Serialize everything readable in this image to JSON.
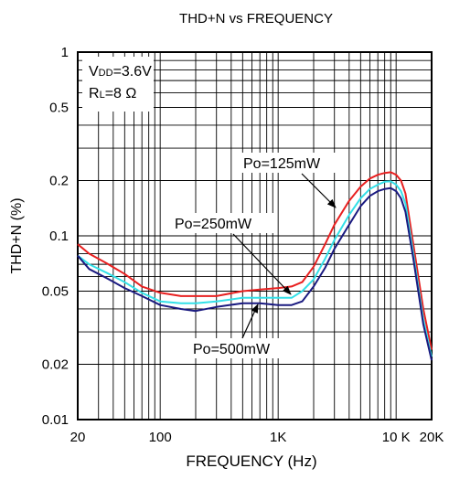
{
  "chart_data": {
    "type": "line",
    "title": "THD+N vs FREQUENCY",
    "xlabel": "FREQUENCY (Hz)",
    "ylabel": "THD+N (%)",
    "x_scale": "log",
    "y_scale": "log",
    "xlim": [
      20,
      20000
    ],
    "ylim": [
      0.01,
      1
    ],
    "x_ticks": [
      {
        "value": 20,
        "label": "20"
      },
      {
        "value": 100,
        "label": "100"
      },
      {
        "value": 1000,
        "label": "1K"
      },
      {
        "value": 10000,
        "label": "10 K"
      },
      {
        "value": 20000,
        "label": "20K"
      }
    ],
    "y_ticks": [
      {
        "value": 1,
        "label": "1"
      },
      {
        "value": 0.5,
        "label": "0.5"
      },
      {
        "value": 0.2,
        "label": "0.2"
      },
      {
        "value": 0.1,
        "label": "0.1"
      },
      {
        "value": 0.05,
        "label": "0.05"
      },
      {
        "value": 0.02,
        "label": "0.02"
      },
      {
        "value": 0.01,
        "label": "0.01"
      }
    ],
    "grid": true,
    "conditions": {
      "vdd_prefix": "V",
      "vdd_sub": "DD",
      "vdd_value": "=3.6V",
      "rl_prefix": "R",
      "rl_sub": "L",
      "rl_value": "=8 Ω"
    },
    "series": [
      {
        "name": "Po=125mW",
        "color": "#e82020",
        "x": [
          20,
          25,
          35,
          50,
          70,
          100,
          150,
          200,
          300,
          500,
          700,
          1000,
          1300,
          1600,
          2000,
          2500,
          3000,
          4000,
          5000,
          6000,
          7000,
          8000,
          9000,
          10000,
          11000,
          12000,
          14000,
          17000,
          20000
        ],
        "y": [
          0.09,
          0.08,
          0.071,
          0.062,
          0.053,
          0.049,
          0.047,
          0.047,
          0.047,
          0.05,
          0.051,
          0.052,
          0.053,
          0.056,
          0.068,
          0.09,
          0.115,
          0.155,
          0.185,
          0.205,
          0.215,
          0.22,
          0.222,
          0.215,
          0.2,
          0.17,
          0.09,
          0.04,
          0.024
        ]
      },
      {
        "name": "Po=250mW",
        "color": "#33e0e8",
        "x": [
          20,
          25,
          35,
          50,
          70,
          100,
          150,
          200,
          300,
          500,
          700,
          1000,
          1300,
          1600,
          2000,
          2500,
          3000,
          4000,
          5000,
          6000,
          7000,
          8000,
          9000,
          10000,
          11000,
          12000,
          14000,
          17000,
          20000
        ],
        "y": [
          0.078,
          0.07,
          0.063,
          0.056,
          0.049,
          0.044,
          0.043,
          0.043,
          0.044,
          0.046,
          0.046,
          0.046,
          0.046,
          0.05,
          0.058,
          0.075,
          0.095,
          0.13,
          0.16,
          0.18,
          0.19,
          0.197,
          0.198,
          0.19,
          0.175,
          0.15,
          0.08,
          0.035,
          0.022
        ]
      },
      {
        "name": "Po=500mW",
        "color": "#1a1a80",
        "x": [
          20,
          25,
          35,
          50,
          70,
          100,
          150,
          200,
          300,
          500,
          700,
          1000,
          1300,
          1600,
          2000,
          2500,
          3000,
          4000,
          5000,
          6000,
          7000,
          8000,
          9000,
          10000,
          11000,
          12000,
          14000,
          17000,
          20000
        ],
        "y": [
          0.078,
          0.066,
          0.059,
          0.052,
          0.047,
          0.042,
          0.04,
          0.039,
          0.041,
          0.043,
          0.043,
          0.042,
          0.042,
          0.044,
          0.053,
          0.067,
          0.085,
          0.115,
          0.145,
          0.165,
          0.175,
          0.18,
          0.182,
          0.175,
          0.16,
          0.135,
          0.075,
          0.033,
          0.021
        ]
      }
    ],
    "annotations": [
      {
        "text": "Po=125mW",
        "series": "Po=125mW"
      },
      {
        "text": "Po=250mW",
        "series": "Po=250mW"
      },
      {
        "text": "Po=500mW",
        "series": "Po=500mW"
      }
    ]
  }
}
